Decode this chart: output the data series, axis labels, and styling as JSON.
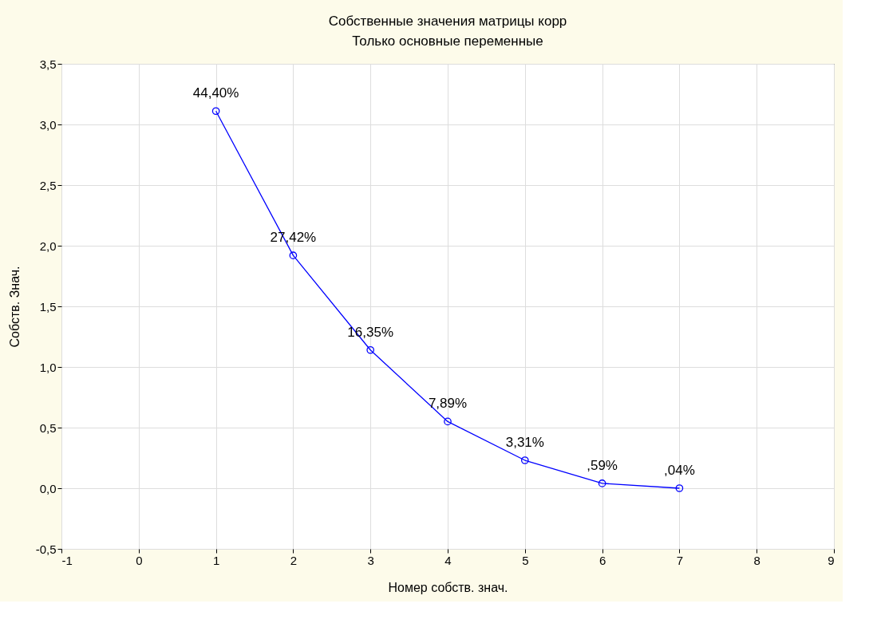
{
  "chart_data": {
    "type": "line",
    "title": "Собственные значения матрицы корр",
    "subtitle": "Только основные переменные",
    "xlabel": "Номер собств. знач.",
    "ylabel": "Собств. Знач.",
    "x": [
      1,
      2,
      3,
      4,
      5,
      6,
      7
    ],
    "series": [
      {
        "color": "#0000ff",
        "values": [
          3.11,
          1.92,
          1.14,
          0.55,
          0.23,
          0.04,
          0.0
        ]
      }
    ],
    "annotations": [
      {
        "text": "44,40%",
        "x": 1,
        "y": 3.11
      },
      {
        "text": "27,42%",
        "x": 2,
        "y": 1.92
      },
      {
        "text": "16,35%",
        "x": 3,
        "y": 1.14
      },
      {
        "text": "7,89%",
        "x": 4,
        "y": 0.55
      },
      {
        "text": "3,31%",
        "x": 5,
        "y": 0.23
      },
      {
        "text": ",59%",
        "x": 6,
        "y": 0.04
      },
      {
        "text": ",04%",
        "x": 7,
        "y": 0.0
      }
    ],
    "xlim": [
      -1,
      9
    ],
    "xticks": [
      -1,
      0,
      1,
      2,
      3,
      4,
      5,
      6,
      7,
      8,
      9
    ],
    "ylim": [
      -0.5,
      3.5
    ],
    "yticks": [
      {
        "value": -0.5,
        "label": "-0,5"
      },
      {
        "value": 0,
        "label": "0,0"
      },
      {
        "value": 0.5,
        "label": "0,5"
      },
      {
        "value": 1,
        "label": "1,0"
      },
      {
        "value": 1.5,
        "label": "1,5"
      },
      {
        "value": 2,
        "label": "2,0"
      },
      {
        "value": 2.5,
        "label": "2,5"
      },
      {
        "value": 3,
        "label": "3,0"
      },
      {
        "value": 3.5,
        "label": "3,5"
      }
    ],
    "grid": true,
    "marker": "circle",
    "line_style": "solid"
  }
}
